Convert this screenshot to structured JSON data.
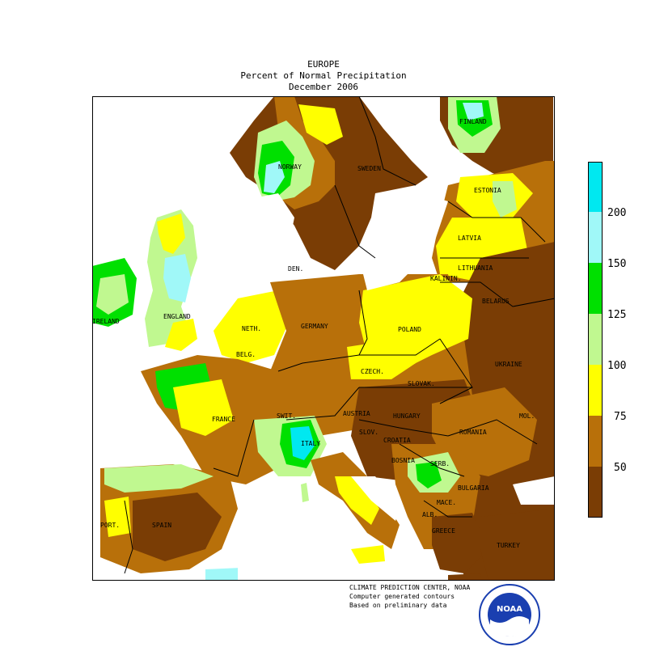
{
  "header": {
    "region": "EUROPE",
    "metric": "Percent of Normal Precipitation",
    "period": "December 2006"
  },
  "colors": {
    "below_50": "#7a3d05",
    "50_75": "#b8700a",
    "75_100": "#ffff00",
    "100_125": "#c0f890",
    "125_150": "#00e000",
    "150_200": "#a0f8f8",
    "above_200": "#00e8f0",
    "water": "#ffffff"
  },
  "legend": {
    "ticks": [
      "50",
      "75",
      "100",
      "125",
      "150",
      "200"
    ]
  },
  "labels": {
    "norway": "NORWAY",
    "sweden": "SWEDEN",
    "finland": "FINLAND",
    "estonia": "ESTONIA",
    "latvia": "LATVIA",
    "lithuania": "LITHUANIA",
    "kalinin": "KALININ.",
    "belarus": "BELARUS",
    "den": "DEN.",
    "ireland": "IRELAND",
    "england": "ENGLAND",
    "neth": "NETH.",
    "belg": "BELG.",
    "germany": "GERMANY",
    "poland": "POLAND",
    "czech": "CZECH.",
    "slovak": "SLOVAK.",
    "ukraine": "UKRAINE",
    "france": "FRANCE",
    "switz": "SWIT.",
    "austria": "AUSTRIA",
    "hungary": "HUNGARY",
    "romania": "ROMANIA",
    "mol": "MOL.",
    "sloven": "SLOV.",
    "croatia": "CROATIA",
    "bosnia": "BOSNIA",
    "serb": "SERB.",
    "bulgaria": "BULGARIA",
    "italy": "ITALY",
    "mace": "MACE.",
    "alb": "ALB.",
    "greece": "GREECE",
    "turkey": "TURKEY",
    "port": "PORT.",
    "spain": "SPAIN"
  },
  "credits": {
    "line1": "CLIMATE PREDICTION CENTER, NOAA",
    "line2": "Computer generated contours",
    "line3": "Based on preliminary data"
  },
  "logo": {
    "text": "NOAA"
  }
}
